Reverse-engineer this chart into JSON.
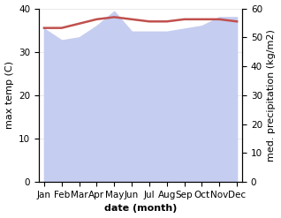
{
  "months": [
    "Jan",
    "Feb",
    "Mar",
    "Apr",
    "May",
    "Jun",
    "Jul",
    "Aug",
    "Sep",
    "Oct",
    "Nov",
    "Dec"
  ],
  "temp": [
    35.5,
    35.5,
    36.5,
    37.5,
    38.0,
    37.5,
    37.0,
    37.0,
    37.5,
    37.5,
    37.5,
    37.0
  ],
  "precip": [
    53.0,
    49.0,
    50.0,
    54.0,
    59.0,
    52.0,
    52.0,
    52.0,
    53.0,
    54.0,
    57.0,
    57.0
  ],
  "temp_color": "#c0504d",
  "precip_fill_color": "#c5cdf0",
  "ylabel_left": "max temp (C)",
  "ylabel_right": "med. precipitation (kg/m2)",
  "xlabel": "date (month)",
  "ylim_left": [
    0,
    40
  ],
  "ylim_right": [
    0,
    60
  ],
  "yticks_left": [
    0,
    10,
    20,
    30,
    40
  ],
  "yticks_right": [
    0,
    10,
    20,
    30,
    40,
    50,
    60
  ],
  "axis_fontsize": 8,
  "tick_fontsize": 7.5
}
